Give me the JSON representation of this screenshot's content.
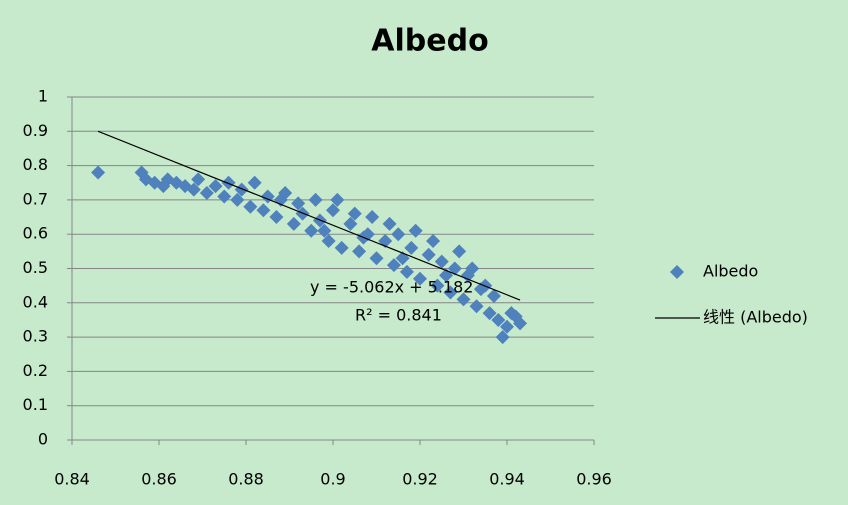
{
  "chart_data": {
    "type": "scatter",
    "title": "Albedo",
    "series": [
      {
        "name": "Albedo",
        "type": "scatter",
        "color": "#4f81bd",
        "x": [
          0.846,
          0.856,
          0.857,
          0.859,
          0.861,
          0.862,
          0.864,
          0.866,
          0.868,
          0.869,
          0.871,
          0.873,
          0.875,
          0.876,
          0.878,
          0.879,
          0.881,
          0.882,
          0.884,
          0.885,
          0.887,
          0.888,
          0.889,
          0.891,
          0.892,
          0.893,
          0.895,
          0.896,
          0.897,
          0.899,
          0.9,
          0.901,
          0.902,
          0.904,
          0.905,
          0.906,
          0.908,
          0.909,
          0.91,
          0.912,
          0.913,
          0.914,
          0.915,
          0.917,
          0.918,
          0.919,
          0.92,
          0.922,
          0.923,
          0.924,
          0.925,
          0.927,
          0.928,
          0.929,
          0.93,
          0.931,
          0.932,
          0.933,
          0.935,
          0.936,
          0.937,
          0.938,
          0.939,
          0.94,
          0.941,
          0.942,
          0.943,
          0.898,
          0.907,
          0.916,
          0.926,
          0.934
        ],
        "values": [
          0.78,
          0.78,
          0.76,
          0.75,
          0.74,
          0.76,
          0.75,
          0.74,
          0.73,
          0.76,
          0.72,
          0.74,
          0.71,
          0.75,
          0.7,
          0.73,
          0.68,
          0.75,
          0.67,
          0.71,
          0.65,
          0.7,
          0.72,
          0.63,
          0.69,
          0.66,
          0.61,
          0.7,
          0.64,
          0.58,
          0.67,
          0.7,
          0.56,
          0.63,
          0.66,
          0.55,
          0.6,
          0.65,
          0.53,
          0.58,
          0.63,
          0.51,
          0.6,
          0.49,
          0.56,
          0.61,
          0.47,
          0.54,
          0.58,
          0.45,
          0.52,
          0.43,
          0.5,
          0.55,
          0.41,
          0.48,
          0.5,
          0.39,
          0.45,
          0.37,
          0.42,
          0.35,
          0.3,
          0.33,
          0.37,
          0.36,
          0.34,
          0.61,
          0.59,
          0.53,
          0.48,
          0.44
        ]
      },
      {
        "name": "线性 (Albedo)",
        "type": "line",
        "color": "#000000",
        "x": [
          0.846,
          0.943
        ],
        "values": [
          0.9,
          0.408
        ]
      }
    ],
    "annotations": [
      "y = -5.062x + 5.182",
      "R² = 0.841"
    ],
    "xlim": [
      0.84,
      0.96
    ],
    "xticks": [
      0.84,
      0.86,
      0.88,
      0.9,
      0.92,
      0.94,
      0.96
    ],
    "ylim": [
      0,
      1
    ],
    "yticks": [
      0,
      0.1,
      0.2,
      0.3,
      0.4,
      0.5,
      0.6,
      0.7,
      0.8,
      0.9,
      1
    ],
    "grid": true,
    "legend": "right"
  }
}
